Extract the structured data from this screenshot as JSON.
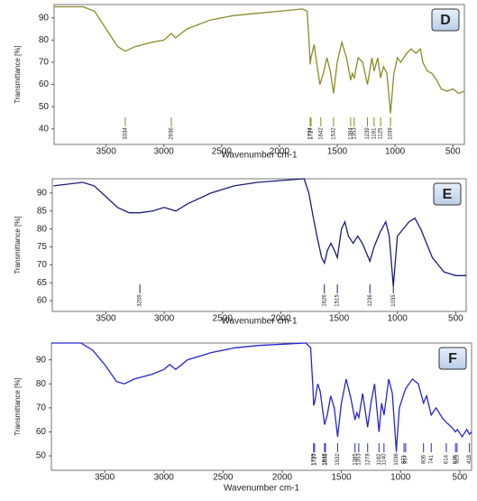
{
  "chart_data": [
    {
      "type": "line",
      "panel_label": "D",
      "xlabel": "Wavenumber cm-1",
      "ylabel": "Transmittance [%]",
      "color": "#8a8a2a",
      "xlim": [
        3950,
        400
      ],
      "ylim": [
        33,
        96
      ],
      "xticks": [
        3500,
        3000,
        2500,
        2000,
        1500,
        1000,
        500
      ],
      "yticks": [
        40,
        50,
        60,
        70,
        80,
        90
      ],
      "x": [
        3950,
        3700,
        3600,
        3500,
        3400,
        3334,
        3250,
        3100,
        3000,
        2936,
        2900,
        2800,
        2600,
        2400,
        2200,
        2000,
        1800,
        1760,
        1740,
        1734,
        1727,
        1700,
        1690,
        1650,
        1620,
        1590,
        1560,
        1532,
        1500,
        1460,
        1420,
        1384,
        1370,
        1353,
        1320,
        1280,
        1239,
        1200,
        1181,
        1150,
        1125,
        1100,
        1070,
        1039,
        1010,
        980,
        950,
        900,
        860,
        820,
        780,
        760,
        720,
        680,
        640,
        600,
        550,
        500,
        450,
        400
      ],
      "values": [
        95,
        95,
        93,
        85,
        77,
        75,
        77,
        79,
        80,
        83,
        81,
        85,
        89,
        91,
        92,
        93,
        94,
        93,
        75,
        69,
        72,
        78,
        74,
        60,
        65,
        72,
        66,
        56,
        70,
        79,
        72,
        62,
        65,
        63,
        72,
        70,
        60,
        72,
        66,
        72,
        63,
        68,
        65,
        47,
        65,
        72,
        70,
        74,
        76,
        74,
        76,
        70,
        66,
        65,
        62,
        58,
        57,
        58,
        56,
        57
      ],
      "peaks": [
        3334,
        2936,
        1734,
        1727,
        1642,
        1532,
        1384,
        1353,
        1239,
        1181,
        1125,
        1039
      ]
    },
    {
      "type": "line",
      "panel_label": "E",
      "xlabel": "Wavenumber cm-1",
      "ylabel": "Transmittance [%]",
      "color": "#1c1c7a",
      "xlim": [
        3960,
        410
      ],
      "ylim": [
        57,
        94
      ],
      "xticks": [
        3500,
        3000,
        2500,
        2000,
        1500,
        1000,
        500
      ],
      "yticks": [
        60,
        65,
        70,
        75,
        80,
        85,
        90
      ],
      "x": [
        3950,
        3700,
        3600,
        3500,
        3400,
        3300,
        3209,
        3100,
        3000,
        2900,
        2800,
        2600,
        2400,
        2200,
        2000,
        1800,
        1760,
        1720,
        1690,
        1650,
        1626,
        1600,
        1570,
        1540,
        1515,
        1480,
        1450,
        1420,
        1380,
        1340,
        1300,
        1236,
        1200,
        1150,
        1100,
        1070,
        1035,
        1000,
        950,
        900,
        850,
        800,
        750,
        700,
        650,
        600,
        550,
        500,
        450,
        410
      ],
      "values": [
        92,
        93,
        92,
        89,
        86,
        84.5,
        84.5,
        85,
        86,
        85,
        87,
        90,
        92,
        93,
        93.5,
        94,
        90,
        83,
        78,
        72,
        70.5,
        74,
        76,
        74,
        72,
        80,
        82,
        78,
        76,
        78,
        76,
        71,
        75,
        79,
        82,
        78,
        64,
        78,
        80,
        82,
        83,
        80,
        76,
        72,
        70,
        68,
        67.5,
        67,
        67,
        67
      ],
      "peaks": [
        3209,
        1626,
        1515,
        1236,
        1035
      ]
    },
    {
      "type": "line",
      "panel_label": "F",
      "xlabel": "Wavenumber cm-1",
      "ylabel": "Transmittance [%]",
      "color": "#2525d0",
      "xlim": [
        3950,
        400
      ],
      "ylim": [
        44,
        97
      ],
      "xticks": [
        3500,
        3000,
        2500,
        2000,
        1500,
        1000,
        500
      ],
      "yticks": [
        50,
        60,
        70,
        80,
        90
      ],
      "x": [
        3950,
        3700,
        3600,
        3500,
        3400,
        3334,
        3250,
        3100,
        3000,
        2950,
        2900,
        2800,
        2600,
        2400,
        2200,
        2000,
        1800,
        1760,
        1740,
        1735,
        1727,
        1700,
        1680,
        1642,
        1620,
        1590,
        1560,
        1532,
        1500,
        1460,
        1420,
        1385,
        1370,
        1353,
        1320,
        1278,
        1250,
        1220,
        1182,
        1160,
        1140,
        1100,
        1070,
        1036,
        1010,
        971,
        957,
        900,
        850,
        806,
        780,
        741,
        700,
        650,
        614,
        570,
        536,
        520,
        480,
        440,
        418,
        400
      ],
      "values": [
        97,
        97,
        94,
        88,
        81,
        80,
        82,
        84,
        86,
        88,
        86,
        90,
        93,
        95,
        96,
        96.5,
        97,
        95,
        78,
        71,
        72,
        80,
        77,
        63,
        67,
        75,
        70,
        58,
        72,
        82,
        74,
        65,
        68,
        66,
        76,
        62,
        72,
        80,
        60,
        72,
        67,
        82,
        76,
        52,
        70,
        76,
        78,
        82,
        80,
        72,
        75,
        67,
        70,
        66,
        64,
        62,
        60,
        61,
        58,
        61,
        59,
        60
      ],
      "peaks": [
        1735,
        1727,
        1642,
        1635,
        1532,
        1385,
        1353,
        1278,
        1182,
        1140,
        1036,
        971,
        957,
        806,
        741,
        614,
        536,
        523,
        418
      ]
    }
  ]
}
